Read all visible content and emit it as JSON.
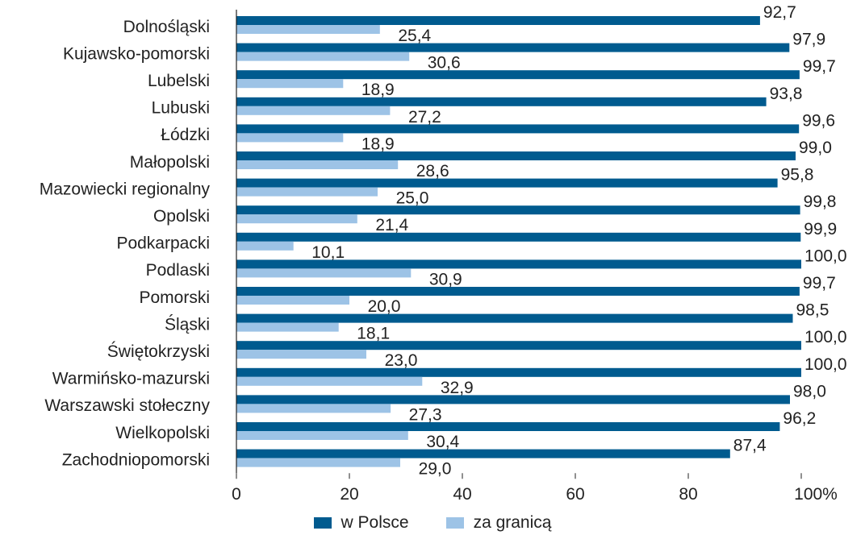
{
  "chart_data": {
    "type": "bar",
    "orientation": "horizontal",
    "categories": [
      "Dolnośląski",
      "Kujawsko-pomorski",
      "Lubelski",
      "Lubuski",
      "Łódzki",
      "Małopolski",
      "Mazowiecki regionalny",
      "Opolski",
      "Podkarpacki",
      "Podlaski",
      "Pomorski",
      "Śląski",
      "Świętokrzyski",
      "Warmińsko-mazurski",
      "Warszawski stołeczny",
      "Wielkopolski",
      "Zachodniopomorski"
    ],
    "series": [
      {
        "name": "w Polsce",
        "color": "#005b8f",
        "values": [
          92.7,
          97.9,
          99.7,
          93.8,
          99.6,
          99.0,
          95.8,
          99.8,
          99.9,
          100.0,
          99.7,
          98.5,
          100.0,
          100.0,
          98.0,
          96.2,
          87.4
        ],
        "labels": [
          "92,7",
          "97,9",
          "99,7",
          "93,8",
          "99,6",
          "99,0",
          "95,8",
          "99,8",
          "99,9",
          "100,0",
          "99,7",
          "98,5",
          "100,0",
          "100,0",
          "98,0",
          "96,2",
          "87,4"
        ]
      },
      {
        "name": "za granicą",
        "color": "#9dc3e6",
        "values": [
          25.4,
          30.6,
          18.9,
          27.2,
          18.9,
          28.6,
          25.0,
          21.4,
          10.1,
          30.9,
          20.0,
          18.1,
          23.0,
          32.9,
          27.3,
          30.4,
          29.0
        ],
        "labels": [
          "25,4",
          "30,6",
          "18,9",
          "27,2",
          "18,9",
          "28,6",
          "25,0",
          "21,4",
          "10,1",
          "30,9",
          "20,0",
          "18,1",
          "23,0",
          "32,9",
          "27,3",
          "30,4",
          "29,0"
        ]
      }
    ],
    "xticks": [
      0,
      20,
      40,
      60,
      80,
      100
    ],
    "xtick_labels": [
      "0",
      "20",
      "40",
      "60",
      "80",
      "100%"
    ],
    "xlim": [
      0,
      100
    ],
    "grid": false,
    "legend_position": "bottom"
  }
}
